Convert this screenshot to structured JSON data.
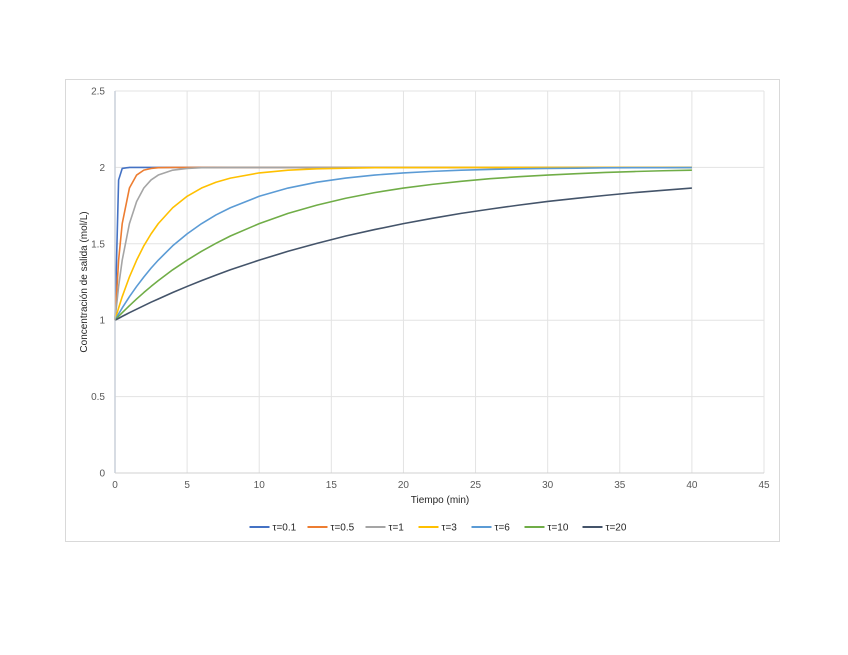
{
  "chart_data": {
    "type": "line",
    "xlabel": "Tiempo (min)",
    "ylabel": "Concentración de salida (mol/L)",
    "xlim": [
      0,
      45
    ],
    "ylim": [
      0,
      2.5
    ],
    "x_ticks": [
      "0",
      "5",
      "10",
      "15",
      "20",
      "25",
      "30",
      "35",
      "40",
      "45"
    ],
    "y_ticks": [
      "0",
      "0.5",
      "1",
      "1.5",
      "2",
      "2.5"
    ],
    "grid": true,
    "legend_position": "bottom",
    "x": [
      0,
      0.25,
      0.5,
      1,
      1.5,
      2,
      2.5,
      3,
      4,
      5,
      6,
      7,
      8,
      10,
      12,
      14,
      16,
      18,
      20,
      22,
      24,
      26,
      28,
      30,
      32,
      34,
      36,
      38,
      40
    ],
    "series": [
      {
        "name": "τ=0.1",
        "color": "#4472C4",
        "values": [
          1.0,
          1.918,
          1.993,
          2.0,
          2.0,
          2.0,
          2.0,
          2.0,
          2.0,
          2.0,
          2.0,
          2.0,
          2.0,
          2.0,
          2.0,
          2.0,
          2.0,
          2.0,
          2.0,
          2.0,
          2.0,
          2.0,
          2.0,
          2.0,
          2.0,
          2.0,
          2.0,
          2.0,
          2.0
        ]
      },
      {
        "name": "τ=0.5",
        "color": "#ED7D31",
        "values": [
          1.0,
          1.393,
          1.632,
          1.865,
          1.95,
          1.982,
          1.993,
          1.998,
          2.0,
          2.0,
          2.0,
          2.0,
          2.0,
          2.0,
          2.0,
          2.0,
          2.0,
          2.0,
          2.0,
          2.0,
          2.0,
          2.0,
          2.0,
          2.0,
          2.0,
          2.0,
          2.0,
          2.0,
          2.0
        ]
      },
      {
        "name": "τ=1",
        "color": "#A5A5A5",
        "values": [
          1.0,
          1.221,
          1.393,
          1.632,
          1.777,
          1.865,
          1.918,
          1.95,
          1.982,
          1.993,
          1.998,
          1.999,
          2.0,
          2.0,
          2.0,
          2.0,
          2.0,
          2.0,
          2.0,
          2.0,
          2.0,
          2.0,
          2.0,
          2.0,
          2.0,
          2.0,
          2.0,
          2.0,
          2.0
        ]
      },
      {
        "name": "τ=3",
        "color": "#FFC000",
        "values": [
          1.0,
          1.08,
          1.154,
          1.283,
          1.393,
          1.487,
          1.565,
          1.632,
          1.736,
          1.811,
          1.865,
          1.903,
          1.93,
          1.964,
          1.982,
          1.991,
          1.995,
          1.998,
          1.999,
          1.999,
          2.0,
          2.0,
          2.0,
          2.0,
          2.0,
          2.0,
          2.0,
          2.0,
          2.0
        ]
      },
      {
        "name": "τ=6",
        "color": "#5B9BD5",
        "values": [
          1.0,
          1.041,
          1.08,
          1.154,
          1.221,
          1.283,
          1.341,
          1.393,
          1.487,
          1.565,
          1.632,
          1.689,
          1.736,
          1.811,
          1.865,
          1.903,
          1.93,
          1.95,
          1.964,
          1.974,
          1.982,
          1.987,
          1.991,
          1.993,
          1.995,
          1.997,
          1.998,
          1.998,
          1.999
        ]
      },
      {
        "name": "τ=10",
        "color": "#70AD47",
        "values": [
          1.0,
          1.025,
          1.049,
          1.095,
          1.139,
          1.181,
          1.221,
          1.259,
          1.33,
          1.393,
          1.451,
          1.503,
          1.551,
          1.632,
          1.699,
          1.753,
          1.798,
          1.835,
          1.865,
          1.889,
          1.909,
          1.926,
          1.939,
          1.95,
          1.959,
          1.967,
          1.973,
          1.978,
          1.982
        ]
      },
      {
        "name": "τ=20",
        "color": "#44546A",
        "values": [
          1.0,
          1.012,
          1.025,
          1.049,
          1.072,
          1.095,
          1.118,
          1.139,
          1.181,
          1.221,
          1.259,
          1.295,
          1.33,
          1.393,
          1.451,
          1.503,
          1.551,
          1.593,
          1.632,
          1.667,
          1.699,
          1.727,
          1.753,
          1.777,
          1.798,
          1.817,
          1.835,
          1.85,
          1.865
        ]
      }
    ]
  }
}
